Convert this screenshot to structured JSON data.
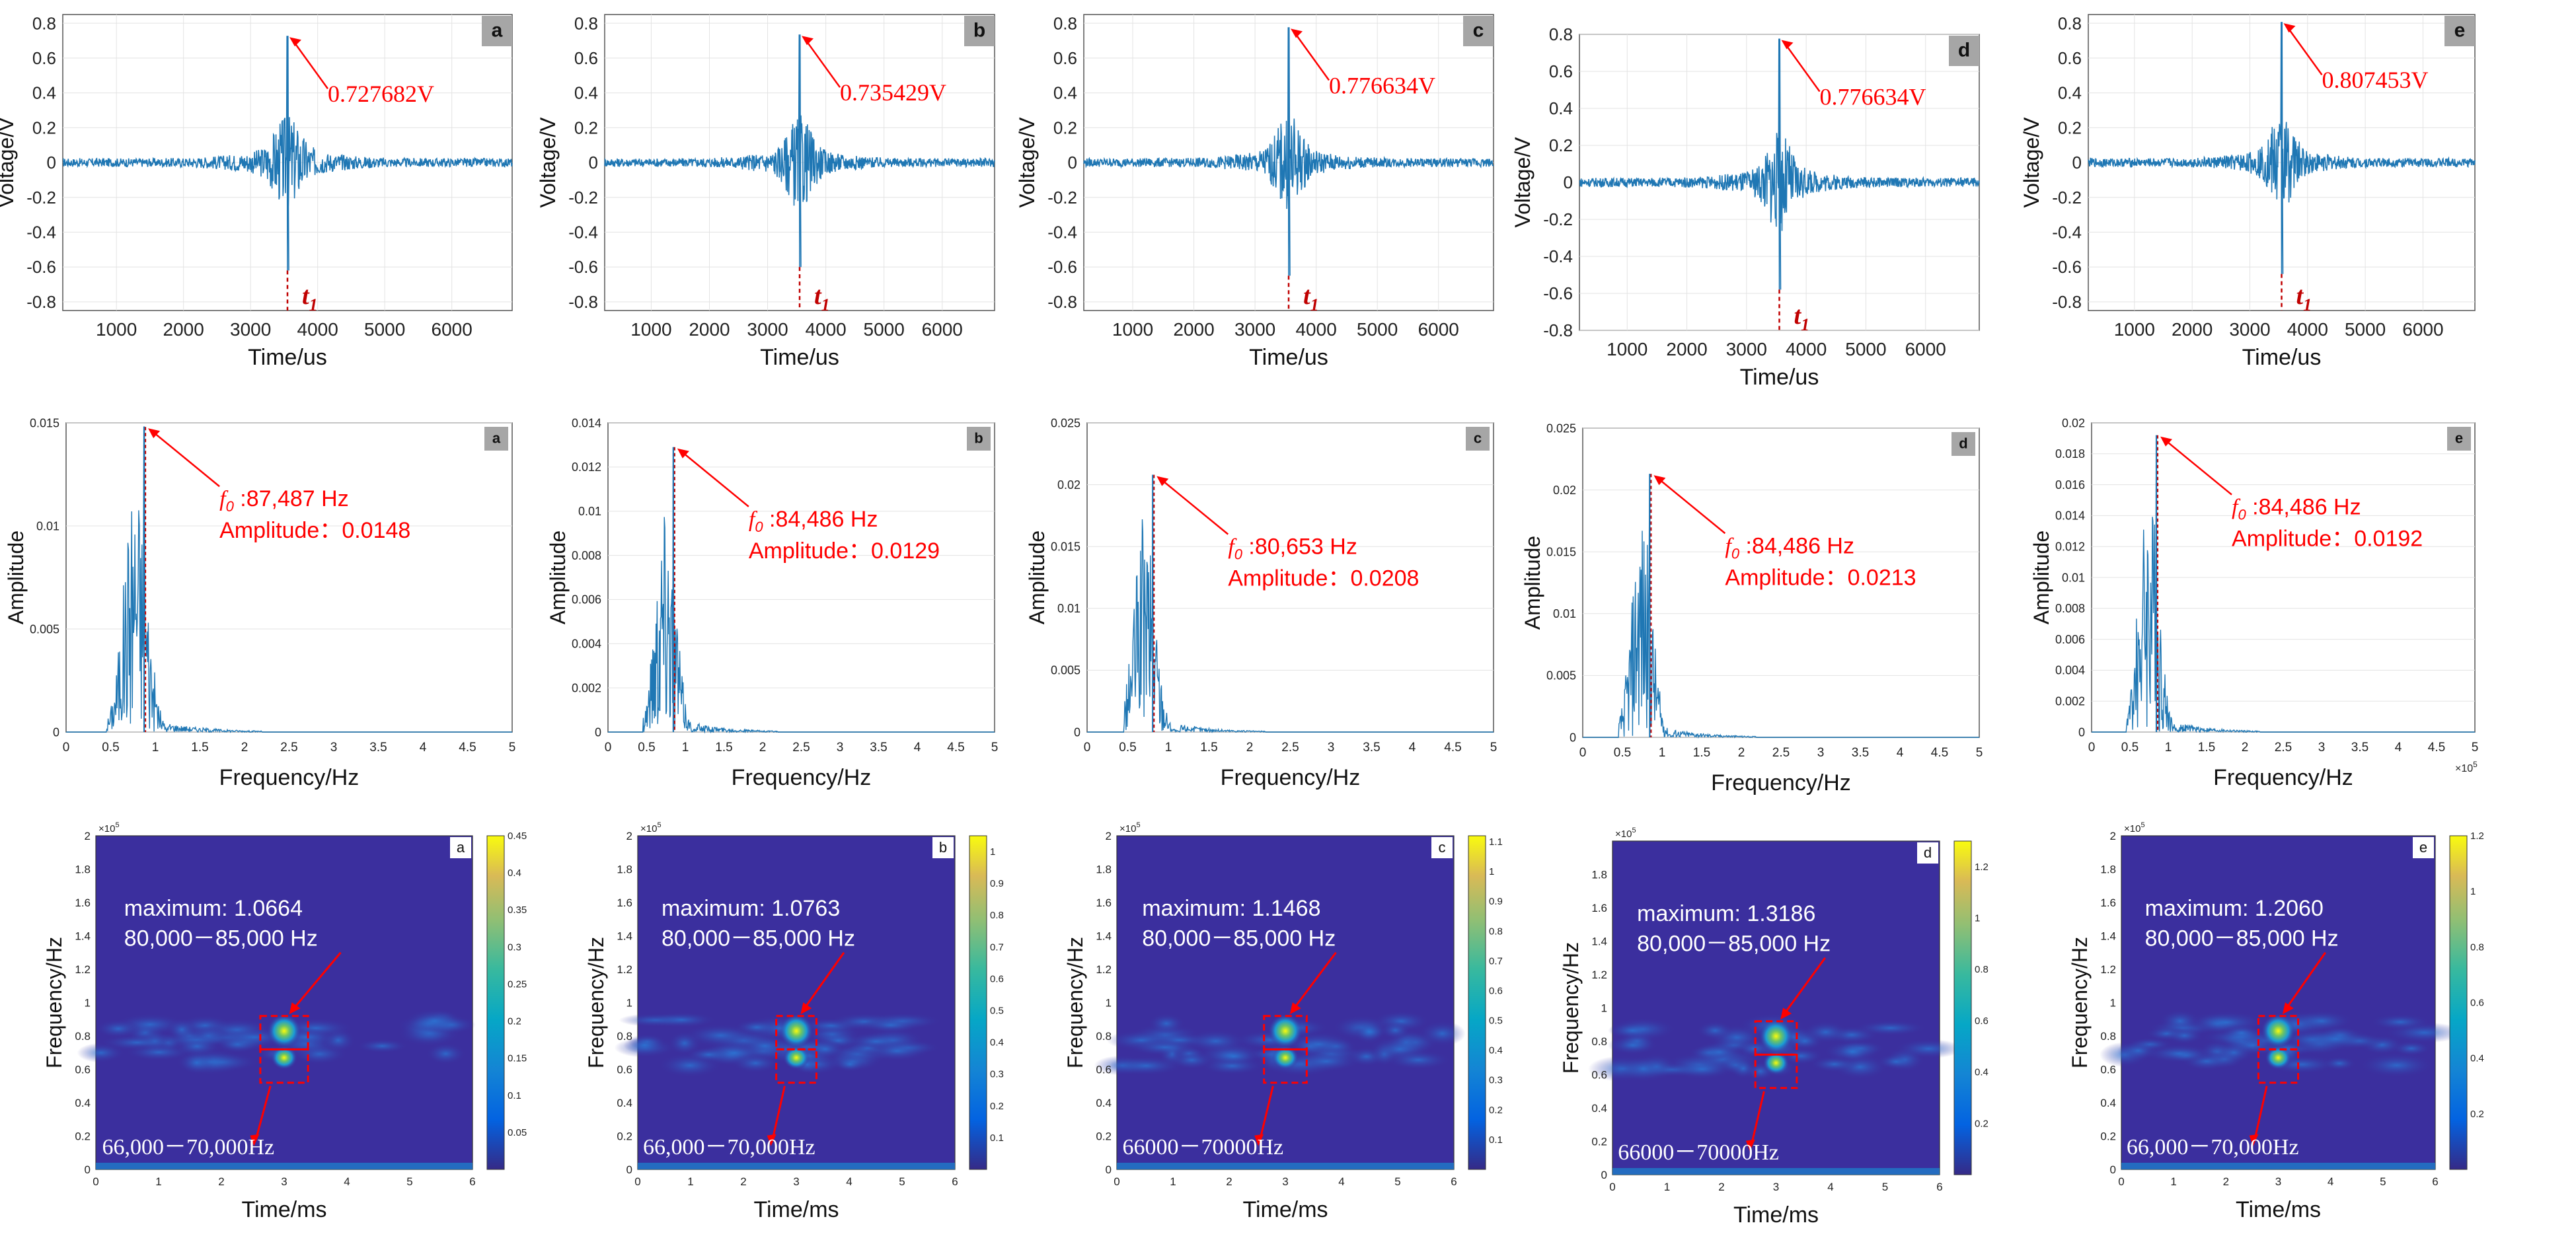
{
  "colors": {
    "signal": "#1f77b4",
    "annotation": "#ff0000",
    "dark_red": "#c00000",
    "badge_bg": "#a6a6a6",
    "grid": "#e3e3e3",
    "heat_bg": "#3b2f9e"
  },
  "labels": {
    "voltage_axis": "Voltage/V",
    "time_us_axis": "Time/us",
    "amplitude_axis": "Amplitude",
    "frequency_axis": "Frequency/Hz",
    "time_ms_axis": "Time/ms",
    "t1_base": "t",
    "t1_sub": "1",
    "f0_base": "f",
    "f0_sub": "0",
    "sci_x10_5": "×10",
    "sci_exp5": "5"
  },
  "chart_data": [
    {
      "type": "line",
      "id": "wave-a",
      "badge": "a",
      "xlabel": "Time/us",
      "ylabel": "Voltage/V",
      "xlim": [
        200,
        6900
      ],
      "ylim": [
        -0.85,
        0.85
      ],
      "x_ticks": [
        "1000",
        "2000",
        "3000",
        "4000",
        "5000",
        "6000"
      ],
      "y_ticks": [
        "0.8",
        "0.6",
        "0.4",
        "0.2",
        "0",
        "-0.2",
        "-0.4",
        "-0.6",
        "-0.8"
      ],
      "peak_x": 3550,
      "peak_value": 0.727682,
      "peak_label": "0.727682V",
      "min_value": -0.62,
      "t1_x": 3550
    },
    {
      "type": "line",
      "id": "wave-b",
      "badge": "b",
      "xlabel": "Time/us",
      "ylabel": "Voltage/V",
      "xlim": [
        200,
        6900
      ],
      "ylim": [
        -0.85,
        0.85
      ],
      "x_ticks": [
        "1000",
        "2000",
        "3000",
        "4000",
        "5000",
        "6000"
      ],
      "y_ticks": [
        "0.8",
        "0.6",
        "0.4",
        "0.2",
        "0",
        "-0.2",
        "-0.4",
        "-0.6",
        "-0.8"
      ],
      "peak_x": 3550,
      "peak_value": 0.735429,
      "peak_label": "0.735429V",
      "min_value": -0.6,
      "t1_x": 3550
    },
    {
      "type": "line",
      "id": "wave-c",
      "badge": "c",
      "xlabel": "Time/us",
      "ylabel": "Voltage/V",
      "xlim": [
        200,
        6900
      ],
      "ylim": [
        -0.85,
        0.85
      ],
      "x_ticks": [
        "1000",
        "2000",
        "3000",
        "4000",
        "5000",
        "6000"
      ],
      "y_ticks": [
        "0.8",
        "0.6",
        "0.4",
        "0.2",
        "0",
        "-0.2",
        "-0.4",
        "-0.6",
        "-0.8"
      ],
      "peak_x": 3550,
      "peak_value": 0.776634,
      "peak_label": "0.776634V",
      "min_value": -0.65,
      "t1_x": 3550
    },
    {
      "type": "line",
      "id": "wave-d",
      "badge": "d",
      "xlabel": "Time/us",
      "ylabel": "Voltage/V",
      "xlim": [
        200,
        6900
      ],
      "ylim": [
        -0.8,
        0.8
      ],
      "x_ticks": [
        "1000",
        "2000",
        "3000",
        "4000",
        "5000",
        "6000"
      ],
      "y_ticks": [
        "0.8",
        "0.6",
        "0.4",
        "0.2",
        "0",
        "-0.2",
        "-0.4",
        "-0.6",
        "-0.8"
      ],
      "peak_x": 3550,
      "peak_value": 0.776634,
      "peak_label": "0.776634V",
      "min_value": -0.58,
      "t1_x": 3550
    },
    {
      "type": "line",
      "id": "wave-e",
      "badge": "e",
      "xlabel": "Time/us",
      "ylabel": "Voltage/V",
      "xlim": [
        200,
        6900
      ],
      "ylim": [
        -0.85,
        0.85
      ],
      "x_ticks": [
        "1000",
        "2000",
        "3000",
        "4000",
        "5000",
        "6000"
      ],
      "y_ticks": [
        "0.8",
        "0.6",
        "0.4",
        "0.2",
        "0",
        "-0.2",
        "-0.4",
        "-0.6",
        "-0.8"
      ],
      "peak_x": 3550,
      "peak_value": 0.807453,
      "peak_label": "0.807453V",
      "min_value": -0.64,
      "t1_x": 3550
    },
    {
      "type": "line",
      "id": "spec-a",
      "badge": "a",
      "xlabel": "Frequency/Hz",
      "ylabel": "Amplitude",
      "xlim": [
        0,
        5
      ],
      "ylim": [
        0,
        0.015
      ],
      "x_ticks": [
        "0",
        "0.5",
        "1",
        "1.5",
        "2",
        "2.5",
        "3",
        "3.5",
        "4",
        "4.5",
        "5"
      ],
      "y_ticks": [
        "0.015",
        "0.01",
        "0.005",
        "0"
      ],
      "peak_x": 0.875,
      "peak_value": 0.0148,
      "f0_text": ":87,487 Hz",
      "amp_text": "Amplitude：0.0148",
      "show_exp": false
    },
    {
      "type": "line",
      "id": "spec-b",
      "badge": "b",
      "xlabel": "Frequency/Hz",
      "ylabel": "Amplitude",
      "xlim": [
        0,
        5
      ],
      "ylim": [
        0,
        0.014
      ],
      "x_ticks": [
        "0",
        "0.5",
        "1",
        "1.5",
        "2",
        "2.5",
        "3",
        "3.5",
        "4",
        "4.5",
        "5"
      ],
      "y_ticks": [
        "0.014",
        "0.012",
        "0.01",
        "0.008",
        "0.006",
        "0.004",
        "0.002",
        "0"
      ],
      "peak_x": 0.845,
      "peak_value": 0.0129,
      "f0_text": ":84,486 Hz",
      "amp_text": "Amplitude：0.0129",
      "show_exp": false
    },
    {
      "type": "line",
      "id": "spec-c",
      "badge": "c",
      "xlabel": "Frequency/Hz",
      "ylabel": "Amplitude",
      "xlim": [
        0,
        5
      ],
      "ylim": [
        0,
        0.025
      ],
      "x_ticks": [
        "0",
        "0.5",
        "1",
        "1.5",
        "2",
        "2.5",
        "3",
        "3.5",
        "4",
        "4.5",
        "5"
      ],
      "y_ticks": [
        "0.025",
        "0.02",
        "0.015",
        "0.01",
        "0.005",
        "0"
      ],
      "peak_x": 0.807,
      "peak_value": 0.0208,
      "f0_text": ":80,653 Hz",
      "amp_text": "Amplitude：0.0208",
      "show_exp": false
    },
    {
      "type": "line",
      "id": "spec-d",
      "badge": "d",
      "xlabel": "Frequency/Hz",
      "ylabel": "Amplitude",
      "xlim": [
        0,
        5
      ],
      "ylim": [
        0,
        0.025
      ],
      "x_ticks": [
        "0",
        "0.5",
        "1",
        "1.5",
        "2",
        "2.5",
        "3",
        "3.5",
        "4",
        "4.5",
        "5"
      ],
      "y_ticks": [
        "0.025",
        "0.02",
        "0.015",
        "0.01",
        "0.005",
        "0"
      ],
      "peak_x": 0.845,
      "peak_value": 0.0213,
      "f0_text": ":84,486 Hz",
      "amp_text": "Amplitude：0.0213",
      "show_exp": false
    },
    {
      "type": "line",
      "id": "spec-e",
      "badge": "e",
      "xlabel": "Frequency/Hz",
      "ylabel": "Amplitude",
      "xlim": [
        0,
        5
      ],
      "ylim": [
        0,
        0.02
      ],
      "x_ticks": [
        "0",
        "0.5",
        "1",
        "1.5",
        "2",
        "2.5",
        "3",
        "3.5",
        "4",
        "4.5",
        "5"
      ],
      "y_ticks": [
        "0.02",
        "0.018",
        "0.016",
        "0.014",
        "0.012",
        "0.01",
        "0.008",
        "0.006",
        "0.004",
        "0.002",
        "0"
      ],
      "peak_x": 0.845,
      "peak_value": 0.0192,
      "f0_text": ":84,486 Hz",
      "amp_text": "Amplitude：0.0192",
      "show_exp": true
    },
    {
      "type": "heatmap",
      "id": "cwt-a",
      "badge": "a",
      "xlabel": "Time/ms",
      "ylabel": "Frequency/Hz",
      "xlim": [
        0,
        6
      ],
      "ylim": [
        0,
        2
      ],
      "x_ticks": [
        "0",
        "1",
        "2",
        "3",
        "4",
        "5",
        "6"
      ],
      "y_ticks": [
        "0",
        "0.2",
        "0.4",
        "0.6",
        "0.8",
        "1",
        "1.2",
        "1.4",
        "1.6",
        "1.8",
        "2"
      ],
      "colorbar_max": 0.45,
      "colorbar_ticks": [
        "0.45",
        "0.4",
        "0.35",
        "0.3",
        "0.25",
        "0.2",
        "0.15",
        "0.1",
        "0.05"
      ],
      "maximum_text": "maximum: 1.0664",
      "upper_band": "80,000－85,000 Hz",
      "lower_band": "66,000－70,000Hz"
    },
    {
      "type": "heatmap",
      "id": "cwt-b",
      "badge": "b",
      "xlabel": "Time/ms",
      "ylabel": "Frequency/Hz",
      "xlim": [
        0,
        6
      ],
      "ylim": [
        0,
        2
      ],
      "x_ticks": [
        "0",
        "1",
        "2",
        "3",
        "4",
        "5",
        "6"
      ],
      "y_ticks": [
        "0",
        "0.2",
        "0.4",
        "0.6",
        "0.8",
        "1",
        "1.2",
        "1.4",
        "1.6",
        "1.8",
        "2"
      ],
      "colorbar_max": 1.05,
      "colorbar_ticks": [
        "1",
        "0.9",
        "0.8",
        "0.7",
        "0.6",
        "0.5",
        "0.4",
        "0.3",
        "0.2",
        "0.1"
      ],
      "maximum_text": "maximum: 1.0763",
      "upper_band": "80,000－85,000 Hz",
      "lower_band": "66,000－70,000Hz"
    },
    {
      "type": "heatmap",
      "id": "cwt-c",
      "badge": "c",
      "xlabel": "Time/ms",
      "ylabel": "Frequency/Hz",
      "xlim": [
        0,
        6
      ],
      "ylim": [
        0,
        2
      ],
      "x_ticks": [
        "0",
        "1",
        "2",
        "3",
        "4",
        "5",
        "6"
      ],
      "y_ticks": [
        "0",
        "0.2",
        "0.4",
        "0.6",
        "0.8",
        "1",
        "1.2",
        "1.4",
        "1.6",
        "1.8",
        "2"
      ],
      "colorbar_max": 1.12,
      "colorbar_ticks": [
        "1.1",
        "1",
        "0.9",
        "0.8",
        "0.7",
        "0.6",
        "0.5",
        "0.4",
        "0.3",
        "0.2",
        "0.1"
      ],
      "maximum_text": "maximum: 1.1468",
      "upper_band": "80,000－85,000 Hz",
      "lower_band": "66000－70000Hz"
    },
    {
      "type": "heatmap",
      "id": "cwt-d",
      "badge": "d",
      "xlabel": "Time/ms",
      "ylabel": "Frequency/Hz",
      "xlim": [
        0,
        6
      ],
      "ylim": [
        0,
        2
      ],
      "x_ticks": [
        "0",
        "1",
        "2",
        "3",
        "4",
        "5",
        "6"
      ],
      "y_ticks": [
        "0",
        "0.2",
        "0.4",
        "0.6",
        "0.8",
        "1",
        "1.2",
        "1.4",
        "1.6",
        "1.8"
      ],
      "colorbar_max": 1.3,
      "colorbar_ticks": [
        "1.2",
        "1",
        "0.8",
        "0.6",
        "0.4",
        "0.2"
      ],
      "maximum_text": "maximum: 1.3186",
      "upper_band": "80,000－85,000 Hz",
      "lower_band": "66000－70000Hz"
    },
    {
      "type": "heatmap",
      "id": "cwt-e",
      "badge": "e",
      "xlabel": "Time/ms",
      "ylabel": "Frequency/Hz",
      "xlim": [
        0,
        6
      ],
      "ylim": [
        0,
        2
      ],
      "x_ticks": [
        "0",
        "1",
        "2",
        "3",
        "4",
        "5",
        "6"
      ],
      "y_ticks": [
        "0",
        "0.2",
        "0.4",
        "0.6",
        "0.8",
        "1",
        "1.2",
        "1.4",
        "1.6",
        "1.8",
        "2"
      ],
      "colorbar_max": 1.2,
      "colorbar_ticks": [
        "1.2",
        "1",
        "0.8",
        "0.6",
        "0.4",
        "0.2"
      ],
      "maximum_text": "maximum: 1.2060",
      "upper_band": "80,000－85,000 Hz",
      "lower_band": "66,000－70,000Hz"
    }
  ]
}
